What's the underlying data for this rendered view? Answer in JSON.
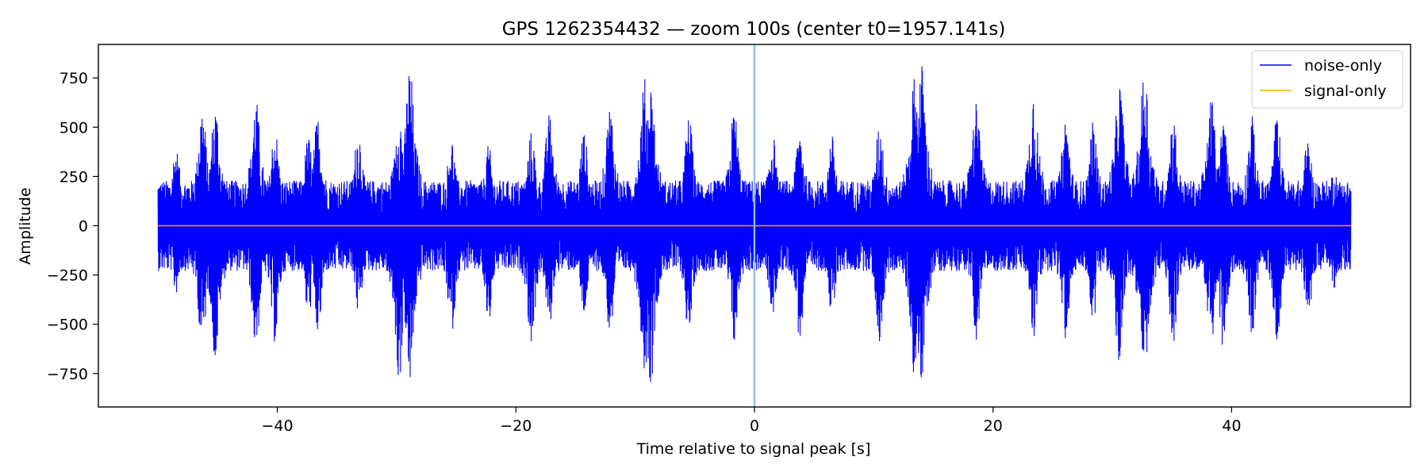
{
  "chart_data": {
    "type": "line",
    "title": "GPS 1262354432 — zoom 100s (center t0=1957.141s)",
    "xlabel": "Time relative to signal peak [s]",
    "ylabel": "Amplitude",
    "xlim": [
      -55,
      55
    ],
    "ylim": [
      -920,
      920
    ],
    "xticks": [
      {
        "value": -40,
        "label": "−40"
      },
      {
        "value": -20,
        "label": "−20"
      },
      {
        "value": 0,
        "label": "0"
      },
      {
        "value": 20,
        "label": "20"
      },
      {
        "value": 40,
        "label": "40"
      }
    ],
    "yticks": [
      {
        "value": 750,
        "label": "750"
      },
      {
        "value": 500,
        "label": "500"
      },
      {
        "value": 250,
        "label": "250"
      },
      {
        "value": 0,
        "label": "0"
      },
      {
        "value": -250,
        "label": "−250"
      },
      {
        "value": -500,
        "label": "−500"
      },
      {
        "value": -750,
        "label": "−750"
      }
    ],
    "grid": false,
    "legend_position": "top-right",
    "vline": {
      "x": 0,
      "color": "#8fbfe0"
    },
    "series": [
      {
        "name": "noise-only",
        "color": "#0000ff",
        "x_range": [
          -50,
          50
        ],
        "envelope_peaks": [
          {
            "x": -48.5,
            "max": 400,
            "min": -350
          },
          {
            "x": -46.3,
            "max": 620,
            "min": -620
          },
          {
            "x": -45.2,
            "max": 620,
            "min": -690
          },
          {
            "x": -41.8,
            "max": 650,
            "min": -630
          },
          {
            "x": -40.2,
            "max": 500,
            "min": -600
          },
          {
            "x": -37.4,
            "max": 460,
            "min": -470
          },
          {
            "x": -36.6,
            "max": 560,
            "min": -560
          },
          {
            "x": -33.2,
            "max": 500,
            "min": -450
          },
          {
            "x": -29.8,
            "max": 600,
            "min": -800
          },
          {
            "x": -28.9,
            "max": 820,
            "min": -830
          },
          {
            "x": -25.4,
            "max": 450,
            "min": -550
          },
          {
            "x": -22.3,
            "max": 410,
            "min": -510
          },
          {
            "x": -18.7,
            "max": 480,
            "min": -610
          },
          {
            "x": -17.2,
            "max": 570,
            "min": -520
          },
          {
            "x": -14.3,
            "max": 480,
            "min": -460
          },
          {
            "x": -12.1,
            "max": 620,
            "min": -560
          },
          {
            "x": -9.2,
            "max": 750,
            "min": -750
          },
          {
            "x": -8.7,
            "max": 730,
            "min": -810
          },
          {
            "x": -5.5,
            "max": 560,
            "min": -560
          },
          {
            "x": -1.7,
            "max": 600,
            "min": -610
          },
          {
            "x": 1.5,
            "max": 480,
            "min": -480
          },
          {
            "x": 3.8,
            "max": 520,
            "min": -580
          },
          {
            "x": 6.5,
            "max": 460,
            "min": -480
          },
          {
            "x": 10.5,
            "max": 530,
            "min": -600
          },
          {
            "x": 13.4,
            "max": 760,
            "min": -760
          },
          {
            "x": 14.0,
            "max": 830,
            "min": -830
          },
          {
            "x": 18.6,
            "max": 650,
            "min": -580
          },
          {
            "x": 23.4,
            "max": 720,
            "min": -580
          },
          {
            "x": 26.1,
            "max": 560,
            "min": -590
          },
          {
            "x": 28.4,
            "max": 530,
            "min": -490
          },
          {
            "x": 30.6,
            "max": 740,
            "min": -740
          },
          {
            "x": 32.7,
            "max": 820,
            "min": -830
          },
          {
            "x": 35.1,
            "max": 560,
            "min": -600
          },
          {
            "x": 38.3,
            "max": 660,
            "min": -610
          },
          {
            "x": 39.3,
            "max": 530,
            "min": -650
          },
          {
            "x": 41.7,
            "max": 560,
            "min": -560
          },
          {
            "x": 43.8,
            "max": 560,
            "min": -600
          },
          {
            "x": 46.4,
            "max": 450,
            "min": -480
          },
          {
            "x": 48.6,
            "max": 300,
            "min": -320
          }
        ],
        "base_amplitude": 230
      },
      {
        "name": "signal-only",
        "color": "#ffa500",
        "x": [
          -50,
          50
        ],
        "y": [
          0,
          0
        ]
      }
    ]
  }
}
